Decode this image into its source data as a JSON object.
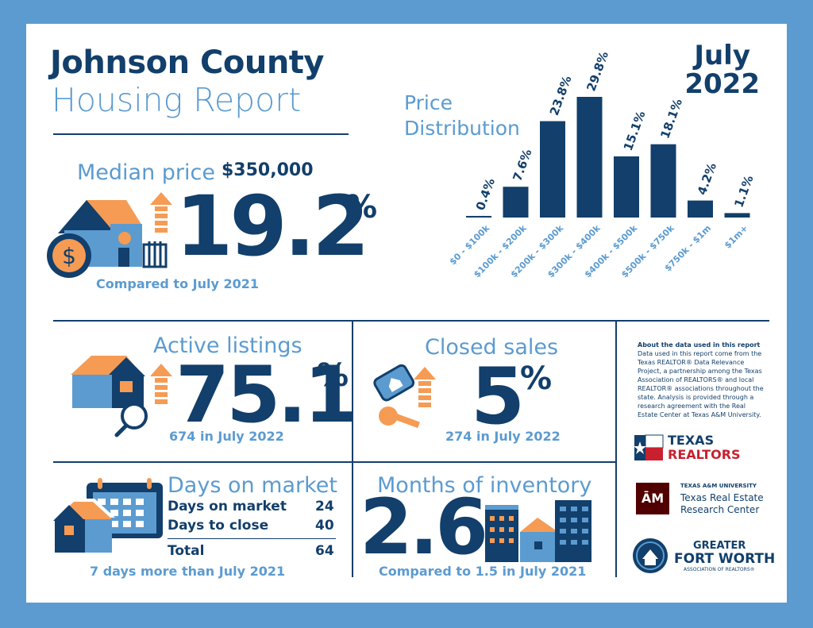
{
  "header": {
    "county": "Johnson County",
    "report": "Housing Report",
    "month": "July",
    "year": "2022"
  },
  "median": {
    "label": "Median price",
    "price": "$350,000",
    "change": "19.2",
    "pct": "%",
    "compare": "Compared to July 2021"
  },
  "active": {
    "label": "Active listings",
    "change": "75.1",
    "pct": "%",
    "sub": "674 in July 2022"
  },
  "closed": {
    "label": "Closed sales",
    "change": "5",
    "pct": "%",
    "sub": "274 in July 2022"
  },
  "dom": {
    "label": "Days on market",
    "rows": [
      {
        "name": "Days on market",
        "value": "24"
      },
      {
        "name": "Days to close",
        "value": "40"
      }
    ],
    "total_name": "Total",
    "total_value": "64",
    "sub": "7 days more than July 2021"
  },
  "inventory": {
    "label": "Months of inventory",
    "value": "2.6",
    "sub": "Compared to 1.5 in July 2021"
  },
  "about": {
    "heading": "About the data used in this report",
    "body": "Data used in this report come from the Texas REALTOR® Data Relevance Project, a partnership among the Texas Association of REALTORS® and local REALTOR® associations throughout the state. Analysis is provided through a research agreement with the Real Estate Center at Texas A&M University."
  },
  "logos": {
    "texas_realtors": [
      "TEXAS",
      "REALTORS"
    ],
    "tamu_small": "TEXAS A&M UNIVERSITY",
    "tamu_name": [
      "Texas Real Estate",
      "Research Center"
    ],
    "gfw": [
      "GREATER",
      "FORT WORTH",
      "ASSOCIATION OF REALTORS®"
    ]
  },
  "colors": {
    "navy": "#123f6b",
    "light_blue": "#5b9bd0",
    "orange": "#f59b54",
    "background": "#5b9bd0"
  },
  "icons": [
    "house-dollar-icon",
    "up-arrow-icon",
    "house-magnifier-icon",
    "key-tag-icon",
    "calendar-house-icon",
    "buildings-icon"
  ],
  "chart_data": {
    "type": "bar",
    "title": [
      "Price",
      "Distribution"
    ],
    "categories": [
      "$0 - $100k",
      "$100k - $200k",
      "$200k - $300k",
      "$300k - $400k",
      "$400k - $500k",
      "$500k - $750k",
      "$750k - $1m",
      "$1m+"
    ],
    "values": [
      0.4,
      7.6,
      23.8,
      29.8,
      15.1,
      18.1,
      4.2,
      1.1
    ],
    "value_labels": [
      "0.4%",
      "7.6%",
      "23.8%",
      "29.8%",
      "15.1%",
      "18.1%",
      "4.2%",
      "1.1%"
    ],
    "color": "#123f6b"
  }
}
